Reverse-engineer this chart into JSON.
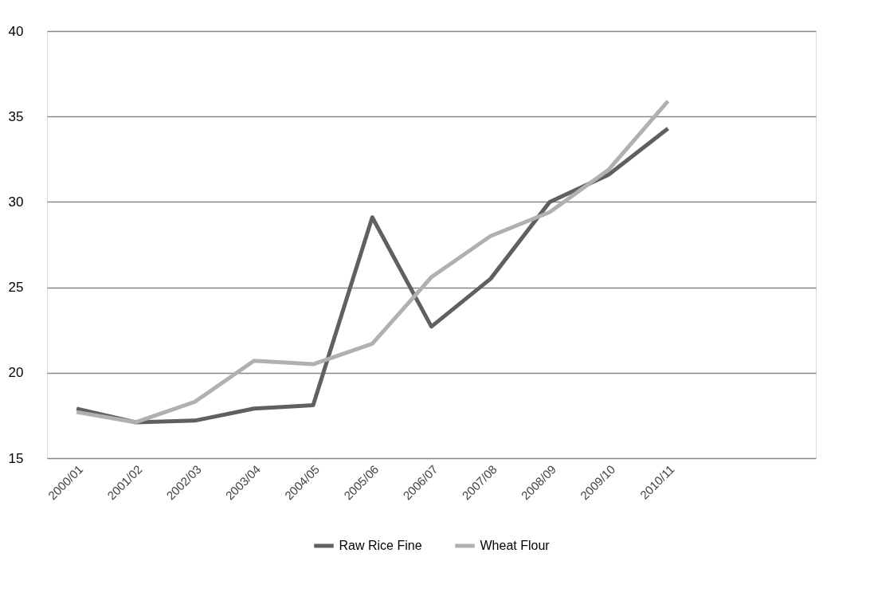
{
  "chart_data": {
    "type": "line",
    "categories": [
      "2000/01",
      "2001/02",
      "2002/03",
      "2003/04",
      "2004/05",
      "2005/06",
      "2006/07",
      "2007/08",
      "2008/09",
      "2009/10",
      "2010/11",
      null,
      null
    ],
    "series": [
      {
        "name": "Raw Rice Fine",
        "color": "#606060",
        "values": [
          17.9,
          17.1,
          17.2,
          17.9,
          18.1,
          29.1,
          22.7,
          25.5,
          30.0,
          31.6,
          34.3,
          null,
          null
        ]
      },
      {
        "name": "Wheat Flour",
        "color": "#b0b0b0",
        "values": [
          17.7,
          17.1,
          18.3,
          20.7,
          20.5,
          21.7,
          25.6,
          28.0,
          29.4,
          31.9,
          35.9,
          null,
          null
        ]
      }
    ],
    "ylim": [
      15,
      40
    ],
    "yticks": [
      15,
      20,
      25,
      30,
      35,
      40
    ],
    "grid": "y",
    "legend": "bottom",
    "line_style": "solid",
    "marker": "none"
  }
}
